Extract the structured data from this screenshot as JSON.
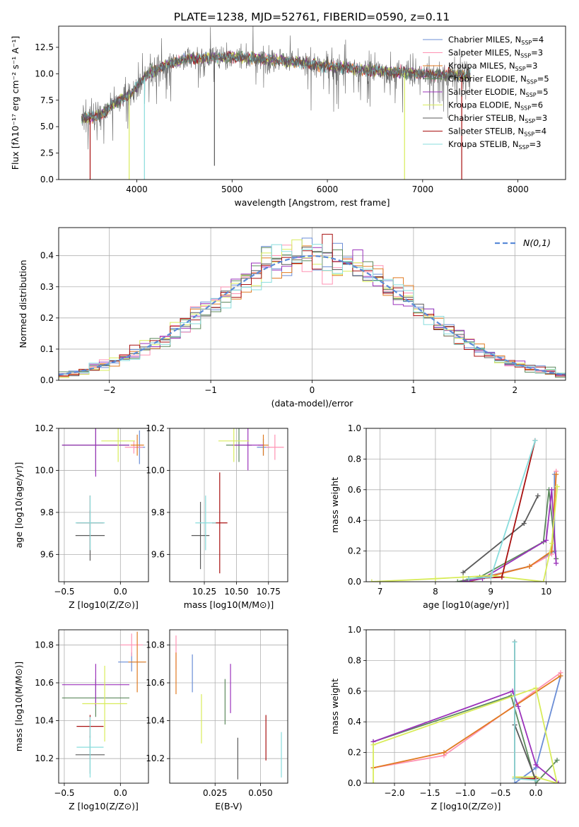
{
  "figure": {
    "title": "PLATE=1238, MJD=52761, FIBERID=0590, z=0.11"
  },
  "colors": {
    "Chabrier MILES": "#6b8ed6",
    "Salpeter MILES": "#ff92b3",
    "Kroupa MILES": "#e07b22",
    "Chabrier ELODIE": "#5e8a5e",
    "Salpeter ELODIE": "#9b33bb",
    "Kroupa ELODIE": "#d8ec5a",
    "Chabrier STELIB": "#5a5a5a",
    "Salpeter STELIB": "#a81010",
    "Kroupa STELIB": "#88dddd",
    "normal": "#5b8bd8",
    "grid": "#b0b0b0"
  },
  "chart_data": [
    {
      "id": "spectrum",
      "type": "line",
      "xlabel": "wavelength [Angstrom, rest frame]",
      "ylabel": "Flux [fλ10⁻¹⁷ erg cm⁻² s⁻¹ A⁻¹]",
      "xlim": [
        3180,
        8500
      ],
      "ylim": [
        0,
        14.5
      ],
      "xticks": [
        "4000",
        "5000",
        "6000",
        "7000",
        "8000"
      ],
      "yticks": [
        "0.0",
        "2.5",
        "5.0",
        "7.5",
        "10.0",
        "12.5"
      ],
      "grid": false,
      "legend_position": "top-right",
      "legend": [
        {
          "label": "Chabrier MILES, N",
          "sub": "SSP",
          "tail": "=4"
        },
        {
          "label": "Salpeter MILES, N",
          "sub": "SSP",
          "tail": "=3"
        },
        {
          "label": "Kroupa MILES, N",
          "sub": "SSP",
          "tail": "=3"
        },
        {
          "label": "Chabrier ELODIE, N",
          "sub": "SSP",
          "tail": "=5"
        },
        {
          "label": "Salpeter ELODIE, N",
          "sub": "SSP",
          "tail": "=5"
        },
        {
          "label": "Kroupa ELODIE, N",
          "sub": "SSP",
          "tail": "=6"
        },
        {
          "label": "Chabrier STELIB, N",
          "sub": "SSP",
          "tail": "=3"
        },
        {
          "label": "Salpeter STELIB, N",
          "sub": "SSP",
          "tail": "=4"
        },
        {
          "label": "Kroupa STELIB, N",
          "sub": "SSP",
          "tail": "=3"
        }
      ],
      "continuum": {
        "x": [
          3420,
          3600,
          3800,
          3950,
          4100,
          4300,
          4500,
          5000,
          5500,
          6000,
          6500,
          7000,
          7300,
          7500
        ],
        "y": [
          5.8,
          6.0,
          7.4,
          8.2,
          9.9,
          10.8,
          11.4,
          11.6,
          11.3,
          10.7,
          10.3,
          10.0,
          9.9,
          9.8
        ]
      },
      "dips": [
        {
          "x": 3510,
          "y": 0.0
        },
        {
          "x": 3920,
          "y": 0.0
        },
        {
          "x": 4080,
          "y": 0.0
        },
        {
          "x": 4815,
          "y": 1.3
        },
        {
          "x": 6810,
          "y": 0.0
        },
        {
          "x": 7410,
          "y": 0.0
        }
      ]
    },
    {
      "id": "residuals",
      "type": "line",
      "xlabel": "(data-model)/error",
      "ylabel": "Normed distribution",
      "xlim": [
        -2.5,
        2.5
      ],
      "ylim": [
        0,
        0.49
      ],
      "xticks": [
        "−2",
        "−1",
        "0",
        "1",
        "2"
      ],
      "yticks": [
        "0.0",
        "0.1",
        "0.2",
        "0.3",
        "0.4"
      ],
      "grid": true,
      "legend_position": "top-right",
      "legend": [
        {
          "label": "N(0,1)"
        }
      ],
      "bins": 50,
      "note": "step histograms of the residuals for each model combination"
    },
    {
      "id": "age_vs_Z",
      "type": "scatter",
      "xlabel": "Z [log10(Z/Z⊙)]",
      "ylabel": "age  [log10(age/yr)]",
      "xlim": [
        -0.55,
        0.25
      ],
      "ylim": [
        9.47,
        10.2
      ],
      "xticks": [
        "−0.5",
        "0.0"
      ],
      "yticks": [
        "9.6",
        "9.8",
        "10.0",
        "10.2"
      ],
      "grid": true,
      "points": [
        {
          "model": "Chabrier MILES",
          "x": 0.17,
          "y": 10.11,
          "xerr": 0.05,
          "yerr": 0.08
        },
        {
          "model": "Salpeter MILES",
          "x": 0.12,
          "y": 10.11,
          "xerr": 0.08,
          "yerr": 0.03
        },
        {
          "model": "Kroupa MILES",
          "x": 0.15,
          "y": 10.12,
          "xerr": 0.06,
          "yerr": 0.05
        },
        {
          "model": "Chabrier ELODIE",
          "x": -0.22,
          "y": 10.12,
          "xerr": 0.3,
          "yerr": 0.13
        },
        {
          "model": "Salpeter ELODIE",
          "x": -0.22,
          "y": 10.12,
          "xerr": 0.3,
          "yerr": 0.15
        },
        {
          "model": "Kroupa ELODIE",
          "x": -0.02,
          "y": 10.14,
          "xerr": 0.15,
          "yerr": 0.1
        },
        {
          "model": "Chabrier STELIB",
          "x": -0.27,
          "y": 9.69,
          "xerr": 0.13,
          "yerr": 0.12
        },
        {
          "model": "Salpeter STELIB",
          "x": -0.27,
          "y": 9.75,
          "xerr": 0.12,
          "yerr": 0.13
        },
        {
          "model": "Kroupa STELIB",
          "x": -0.27,
          "y": 9.75,
          "xerr": 0.13,
          "yerr": 0.13
        }
      ]
    },
    {
      "id": "age_vs_mass",
      "type": "scatter",
      "xlabel": "mass [log10(M/M⊙)]",
      "ylabel": "",
      "xlim": [
        9.98,
        10.9
      ],
      "ylim": [
        9.47,
        10.2
      ],
      "xticks": [
        "10.25",
        "10.50",
        "10.75"
      ],
      "yticks": [
        "9.6",
        "9.8",
        "10.0",
        "10.2"
      ],
      "grid": true,
      "points": [
        {
          "model": "Chabrier MILES",
          "x": 10.71,
          "y": 10.11,
          "xerr": 0.05,
          "yerr": 0.04
        },
        {
          "model": "Salpeter MILES",
          "x": 10.8,
          "y": 10.11,
          "xerr": 0.07,
          "yerr": 0.06
        },
        {
          "model": "Kroupa MILES",
          "x": 10.71,
          "y": 10.12,
          "xerr": 0.04,
          "yerr": 0.05
        },
        {
          "model": "Chabrier ELODIE",
          "x": 10.52,
          "y": 10.12,
          "xerr": 0.1,
          "yerr": 0.08
        },
        {
          "model": "Salpeter ELODIE",
          "x": 10.59,
          "y": 10.12,
          "xerr": 0.12,
          "yerr": 0.12
        },
        {
          "model": "Kroupa ELODIE",
          "x": 10.48,
          "y": 10.14,
          "xerr": 0.12,
          "yerr": 0.1
        },
        {
          "model": "Chabrier STELIB",
          "x": 10.22,
          "y": 9.69,
          "xerr": 0.07,
          "yerr": 0.16
        },
        {
          "model": "Salpeter STELIB",
          "x": 10.37,
          "y": 9.75,
          "xerr": 0.06,
          "yerr": 0.24
        },
        {
          "model": "Kroupa STELIB",
          "x": 10.26,
          "y": 9.75,
          "xerr": 0.08,
          "yerr": 0.13
        }
      ]
    },
    {
      "id": "mass_weight_vs_age",
      "type": "line",
      "xlabel": "age  [log10(age/yr)]",
      "ylabel": "mass weight",
      "xlim": [
        6.75,
        10.35
      ],
      "ylim": [
        0,
        1.0
      ],
      "xticks": [
        "7",
        "8",
        "9",
        "10"
      ],
      "yticks": [
        "0.0",
        "0.2",
        "0.4",
        "0.6",
        "0.8",
        "1.0"
      ],
      "grid": true,
      "series": [
        {
          "model": "Chabrier MILES",
          "x": [
            8.5,
            9.7,
            10.15,
            10.15
          ],
          "y": [
            0.0,
            0.1,
            0.2,
            0.7
          ]
        },
        {
          "model": "Salpeter MILES",
          "x": [
            8.55,
            9.7,
            10.1,
            10.18
          ],
          "y": [
            0.0,
            0.1,
            0.18,
            0.72
          ]
        },
        {
          "model": "Kroupa MILES",
          "x": [
            8.6,
            9.7,
            10.1,
            10.18
          ],
          "y": [
            0.0,
            0.1,
            0.2,
            0.7
          ]
        },
        {
          "model": "Chabrier ELODIE",
          "x": [
            8.4,
            8.8,
            9.95,
            10.05,
            10.18
          ],
          "y": [
            0.0,
            0.03,
            0.26,
            0.6,
            0.15
          ]
        },
        {
          "model": "Salpeter ELODIE",
          "x": [
            8.5,
            8.85,
            10.0,
            10.1,
            10.18
          ],
          "y": [
            0.0,
            0.02,
            0.27,
            0.6,
            0.12
          ]
        },
        {
          "model": "Kroupa ELODIE",
          "x": [
            6.85,
            8.0,
            8.5,
            9.0,
            9.95,
            10.1,
            10.2
          ],
          "y": [
            0.0,
            0.02,
            0.03,
            0.04,
            0.0,
            0.25,
            0.62
          ]
        },
        {
          "model": "Chabrier STELIB",
          "x": [
            8.5,
            9.6,
            9.85
          ],
          "y": [
            0.06,
            0.38,
            0.56
          ]
        },
        {
          "model": "Salpeter STELIB",
          "x": [
            8.6,
            9.2,
            9.8
          ],
          "y": [
            0.02,
            0.03,
            0.92
          ]
        },
        {
          "model": "Kroupa STELIB",
          "x": [
            8.6,
            9.0,
            9.8
          ],
          "y": [
            0.02,
            0.03,
            0.92
          ]
        }
      ]
    },
    {
      "id": "mass_vs_Z",
      "type": "scatter",
      "xlabel": "Z [log10(Z/Z⊙)]",
      "ylabel": "mass [log10(M/M⊙)]",
      "xlim": [
        -0.55,
        0.25
      ],
      "ylim": [
        10.07,
        10.88
      ],
      "xticks": [
        "−0.5",
        "0.0"
      ],
      "yticks": [
        "10.2",
        "10.4",
        "10.6",
        "10.8"
      ],
      "grid": true,
      "points": [
        {
          "model": "Chabrier MILES",
          "x": 0.1,
          "y": 10.71,
          "xerr": 0.12,
          "yerr": 0.05
        },
        {
          "model": "Salpeter MILES",
          "x": 0.1,
          "y": 10.8,
          "xerr": 0.1,
          "yerr": 0.06
        },
        {
          "model": "Kroupa MILES",
          "x": 0.15,
          "y": 10.71,
          "xerr": 0.08,
          "yerr": 0.16
        },
        {
          "model": "Chabrier ELODIE",
          "x": -0.22,
          "y": 10.52,
          "xerr": 0.3,
          "yerr": 0.1
        },
        {
          "model": "Salpeter ELODIE",
          "x": -0.22,
          "y": 10.59,
          "xerr": 0.3,
          "yerr": 0.11
        },
        {
          "model": "Kroupa ELODIE",
          "x": -0.14,
          "y": 10.49,
          "xerr": 0.2,
          "yerr": 0.2
        },
        {
          "model": "Chabrier STELIB",
          "x": -0.27,
          "y": 10.22,
          "xerr": 0.13,
          "yerr": 0.1
        },
        {
          "model": "Salpeter STELIB",
          "x": -0.27,
          "y": 10.37,
          "xerr": 0.12,
          "yerr": 0.06
        },
        {
          "model": "Kroupa STELIB",
          "x": -0.27,
          "y": 10.26,
          "xerr": 0.12,
          "yerr": 0.16
        }
      ]
    },
    {
      "id": "mass_vs_ebv",
      "type": "scatter",
      "xlabel": "E(B-V)",
      "ylabel": "",
      "xlim": [
        0.0,
        0.065
      ],
      "ylim": [
        10.07,
        10.88
      ],
      "xticks": [
        "0.025",
        "0.050"
      ],
      "yticks": [
        "10.2",
        "10.4",
        "10.6",
        "10.8"
      ],
      "grid": true,
      "points": [
        {
          "model": "Chabrier MILES",
          "x": 0.0125,
          "y": 10.65,
          "xerr": 0.0,
          "yerr": 0.1
        },
        {
          "model": "Salpeter MILES",
          "x": 0.0035,
          "y": 10.76,
          "xerr": 0.0,
          "yerr": 0.09
        },
        {
          "model": "Kroupa MILES",
          "x": 0.0035,
          "y": 10.65,
          "xerr": 0.0,
          "yerr": 0.11
        },
        {
          "model": "Chabrier ELODIE",
          "x": 0.0305,
          "y": 10.5,
          "xerr": 0.0,
          "yerr": 0.12
        },
        {
          "model": "Salpeter ELODIE",
          "x": 0.0335,
          "y": 10.57,
          "xerr": 0.0,
          "yerr": 0.13
        },
        {
          "model": "Kroupa ELODIE",
          "x": 0.0175,
          "y": 10.41,
          "xerr": 0.0,
          "yerr": 0.13
        },
        {
          "model": "Chabrier STELIB",
          "x": 0.0375,
          "y": 10.2,
          "xerr": 0.0,
          "yerr": 0.11
        },
        {
          "model": "Salpeter STELIB",
          "x": 0.053,
          "y": 10.31,
          "xerr": 0.0,
          "yerr": 0.12
        },
        {
          "model": "Kroupa STELIB",
          "x": 0.0615,
          "y": 10.22,
          "xerr": 0.0,
          "yerr": 0.12
        }
      ]
    },
    {
      "id": "mass_weight_vs_Z",
      "type": "line",
      "xlabel": "Z [log10(Z/Z⊙)]",
      "ylabel": "mass weight",
      "xlim": [
        -2.4,
        0.42
      ],
      "ylim": [
        0,
        1.0
      ],
      "xticks": [
        "−2.0",
        "−1.5",
        "−1.0",
        "−0.5",
        "0.0"
      ],
      "yticks": [
        "0.0",
        "0.2",
        "0.4",
        "0.6",
        "0.8",
        "1.0"
      ],
      "grid": true,
      "series": [
        {
          "model": "Chabrier MILES",
          "x": [
            -0.3,
            0.0,
            0.35
          ],
          "y": [
            0.0,
            0.1,
            0.7
          ]
        },
        {
          "model": "Salpeter MILES",
          "x": [
            -2.3,
            -1.3,
            0.35
          ],
          "y": [
            0.1,
            0.18,
            0.72
          ]
        },
        {
          "model": "Kroupa MILES",
          "x": [
            -2.3,
            -1.3,
            0.35
          ],
          "y": [
            0.1,
            0.2,
            0.7
          ]
        },
        {
          "model": "Chabrier ELODIE",
          "x": [
            -2.3,
            -0.35,
            0.0,
            0.3
          ],
          "y": [
            0.27,
            0.57,
            0.0,
            0.15
          ]
        },
        {
          "model": "Salpeter ELODIE",
          "x": [
            -2.3,
            -0.33,
            -0.25,
            0.0,
            0.32
          ],
          "y": [
            0.27,
            0.6,
            0.5,
            0.12,
            0.0
          ]
        },
        {
          "model": "Kroupa ELODIE",
          "x": [
            -2.3,
            -2.3,
            0.0,
            0.3,
            0.0,
            -0.3
          ],
          "y": [
            0.0,
            0.25,
            0.62,
            0.0,
            0.04,
            0.04
          ]
        },
        {
          "model": "Chabrier STELIB",
          "x": [
            -0.3,
            -0.3,
            0.0
          ],
          "y": [
            0.92,
            0.38,
            0.02
          ]
        },
        {
          "model": "Salpeter STELIB",
          "x": [
            -0.3,
            -0.3,
            0.0
          ],
          "y": [
            0.92,
            0.03,
            0.03
          ]
        },
        {
          "model": "Kroupa STELIB",
          "x": [
            -0.3,
            -0.3,
            0.0
          ],
          "y": [
            0.92,
            0.03,
            0.02
          ]
        }
      ]
    }
  ]
}
